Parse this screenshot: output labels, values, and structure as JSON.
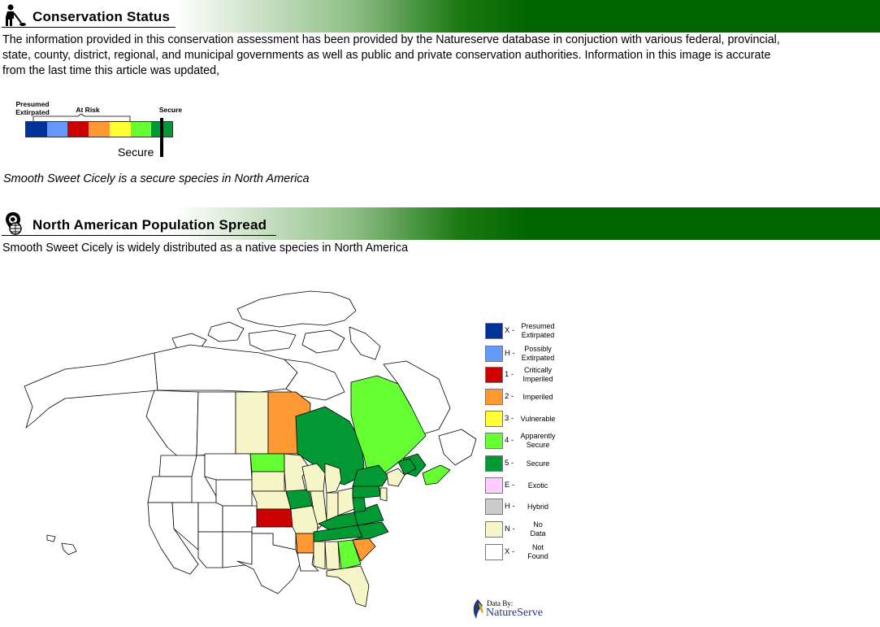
{
  "conservation": {
    "title": "Conservation Status",
    "icon": "person-with-metal-detector-icon",
    "description_lines": [
      "The information provided in this conservation assessment has been provided by the Natureserve  database in conjuction with various federal, provincial,",
      " state, county, district, regional, and  municipal governments as well as public and private conservation authorities. Information in this image is accurate",
      " from the last time this article was updated,"
    ],
    "scale": {
      "label_presumed_line1": "Presumed",
      "label_presumed_line2": "Extirpated",
      "label_at_risk": "At Risk",
      "label_secure": "Secure",
      "marker_label": "Secure",
      "colors": [
        "#003399",
        "#6699ff",
        "#cc0000",
        "#ff9933",
        "#ffff33",
        "#66ff33",
        "#009933"
      ]
    },
    "status_sentence": "Smooth Sweet Cicely is a secure species in North America"
  },
  "population": {
    "title": "North American Population Spread",
    "icon": "map-pin-globe-icon",
    "description": "Smooth Sweet Cicely is widely distributed as a native species in North America"
  },
  "legend": [
    {
      "code": "X -",
      "line1": "Presumed",
      "line2": "Extirpated",
      "color": "#003399"
    },
    {
      "code": "H -",
      "line1": "Possibly",
      "line2": "Extirpated",
      "color": "#6699ff"
    },
    {
      "code": "1 -",
      "line1": "Critically",
      "line2": "Imperiled",
      "color": "#cc0000"
    },
    {
      "code": "2 -",
      "line1": "Imperiled",
      "line2": "",
      "color": "#ff9933"
    },
    {
      "code": "3 -",
      "line1": "Vulnerable",
      "line2": "",
      "color": "#ffff33"
    },
    {
      "code": "4 -",
      "line1": "Apparently",
      "line2": "Secure",
      "color": "#66ff33"
    },
    {
      "code": "5 -",
      "line1": "Secure",
      "line2": "",
      "color": "#009933"
    },
    {
      "code": "E -",
      "line1": "Exotic",
      "line2": "",
      "color": "#ffccff"
    },
    {
      "code": "H -",
      "line1": "Hybrid",
      "line2": "",
      "color": "#cccccc"
    },
    {
      "code": "N -",
      "line1": "No",
      "line2": "Data",
      "color": "#f5f5c8"
    },
    {
      "code": "X -",
      "line1": "Not",
      "line2": "Found",
      "color": "#ffffff"
    }
  ],
  "credit": {
    "label": "Data By:",
    "name": "NatureServe"
  }
}
